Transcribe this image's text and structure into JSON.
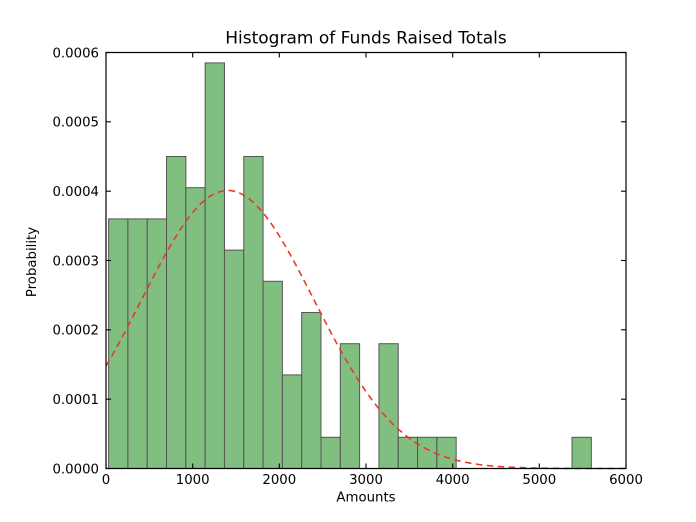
{
  "chart_data": {
    "type": "bar",
    "variant": "histogram",
    "title": "Histogram of Funds Raised Totals",
    "xlabel": "Amounts",
    "ylabel": "Probability",
    "xlim": [
      0,
      6000
    ],
    "ylim": [
      0,
      0.0006
    ],
    "grid": false,
    "legend": null,
    "x_ticks": {
      "values": [
        0,
        1000,
        2000,
        3000,
        4000,
        5000,
        6000
      ],
      "labels": [
        "0",
        "1000",
        "2000",
        "3000",
        "4000",
        "5000",
        "6000"
      ]
    },
    "y_ticks": {
      "values": [
        0,
        0.0001,
        0.0002,
        0.0003,
        0.0004,
        0.0005,
        0.0006
      ],
      "labels": [
        "0.0000",
        "0.0001",
        "0.0002",
        "0.0003",
        "0.0004",
        "0.0005",
        "0.0006"
      ]
    },
    "bins": {
      "start": 30,
      "width": 222.8,
      "count": 25
    },
    "bar_heights": [
      0.00036,
      0.00036,
      0.00036,
      0.00045,
      0.000405,
      0.000585,
      0.000315,
      0.00045,
      0.00027,
      0.000135,
      0.000225,
      4.5e-05,
      0.00018,
      0,
      0.00018,
      4.5e-05,
      4.5e-05,
      4.5e-05,
      0,
      0,
      0,
      0,
      0,
      0,
      4.5e-05
    ],
    "fit_curve": {
      "shape": "normal_pdf",
      "mean": 1405,
      "std_dev": 995,
      "peak": 0.000401,
      "style": "dashed"
    },
    "colors": {
      "bar_fill": "#81bf81",
      "bar_edge": "#545454",
      "curve": "#e8392b",
      "axis": "#000000",
      "background": "#ffffff"
    }
  }
}
